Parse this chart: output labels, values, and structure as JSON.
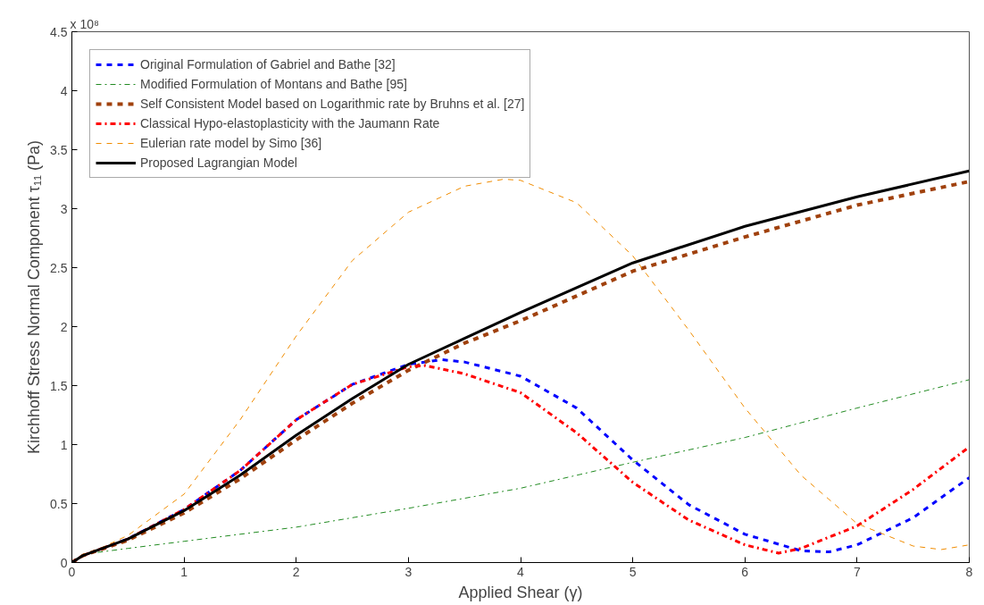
{
  "chart_data": {
    "type": "line",
    "xlabel": "Applied Shear (γ)",
    "ylabel": "Kirchhoff Stress Normal Component τ₁₁ (Pa)",
    "annotations": [
      "x 10⁸"
    ],
    "xlim": [
      0,
      8
    ],
    "ylim": [
      0,
      4.5
    ],
    "xticks": [
      0,
      1,
      2,
      3,
      4,
      5,
      6,
      7,
      8
    ],
    "yticks": [
      0,
      0.5,
      1,
      1.5,
      2,
      2.5,
      3,
      3.5,
      4,
      4.5
    ],
    "grid": false,
    "legend": "top left",
    "marker": "none",
    "series": [
      {
        "name": "Original Formulation of Gabriel and Bathe [32]",
        "color": "#0000ff",
        "line_style": "dashed",
        "x": [
          0,
          0.1,
          0.5,
          1,
          1.5,
          2,
          2.5,
          3,
          3.3,
          3.5,
          4,
          4.5,
          5,
          5.5,
          6,
          6.5,
          6.75,
          7,
          7.5,
          8
        ],
        "values": [
          0,
          0.06,
          0.2,
          0.45,
          0.78,
          1.21,
          1.51,
          1.68,
          1.72,
          1.7,
          1.58,
          1.31,
          0.87,
          0.49,
          0.24,
          0.1,
          0.09,
          0.15,
          0.38,
          0.72
        ]
      },
      {
        "name": "Modified Formulation of Montans and Bathe [95]",
        "color": "#228b22",
        "line_style": "dashdot",
        "x": [
          0,
          0.1,
          0.5,
          1,
          2,
          3,
          4,
          5,
          6,
          7,
          8
        ],
        "values": [
          0,
          0.07,
          0.12,
          0.18,
          0.3,
          0.46,
          0.63,
          0.85,
          1.06,
          1.31,
          1.55
        ]
      },
      {
        "name": "Self Consistent Model based on Logarithmic rate by Bruhns et al. [27]",
        "color": "#a0410d",
        "line_style": "dashed",
        "x": [
          0,
          0.1,
          0.5,
          1,
          1.5,
          2,
          2.5,
          3,
          3.5,
          4,
          5,
          6,
          7,
          8
        ],
        "values": [
          0,
          0.06,
          0.19,
          0.42,
          0.71,
          1.04,
          1.35,
          1.63,
          1.86,
          2.05,
          2.47,
          2.76,
          3.03,
          3.23
        ]
      },
      {
        "name": "Classical Hypo-elastoplasticity with the Jaumann Rate",
        "color": "#ff0000",
        "line_style": "dashdot",
        "x": [
          0,
          0.1,
          0.5,
          1,
          1.5,
          2,
          2.5,
          3,
          3.15,
          3.5,
          4,
          4.5,
          5,
          5.5,
          6,
          6.3,
          6.5,
          7,
          7.5,
          8
        ],
        "values": [
          0,
          0.06,
          0.2,
          0.45,
          0.78,
          1.21,
          1.51,
          1.66,
          1.67,
          1.6,
          1.44,
          1.1,
          0.68,
          0.36,
          0.15,
          0.08,
          0.12,
          0.31,
          0.62,
          0.98
        ]
      },
      {
        "name": "Eulerian rate model by Simo [36]",
        "color": "#f08c00",
        "line_style": "dashed",
        "x": [
          0,
          0.1,
          0.25,
          0.5,
          1,
          1.5,
          2,
          2.5,
          3,
          3.5,
          3.85,
          4,
          4.5,
          5,
          5.5,
          6,
          6.5,
          7,
          7.5,
          7.75,
          8
        ],
        "values": [
          0,
          0.07,
          0.12,
          0.23,
          0.58,
          1.21,
          1.92,
          2.56,
          2.97,
          3.19,
          3.25,
          3.24,
          3.05,
          2.6,
          1.97,
          1.31,
          0.74,
          0.33,
          0.14,
          0.11,
          0.15
        ]
      },
      {
        "name": "Proposed Lagrangian Model",
        "color": "#000000",
        "line_style": "solid",
        "x": [
          0,
          0.1,
          0.5,
          1,
          1.5,
          2,
          2.5,
          3,
          3.5,
          4,
          5,
          6,
          7,
          8
        ],
        "values": [
          0,
          0.06,
          0.2,
          0.44,
          0.74,
          1.08,
          1.39,
          1.68,
          1.9,
          2.12,
          2.54,
          2.85,
          3.1,
          3.32
        ]
      }
    ]
  }
}
